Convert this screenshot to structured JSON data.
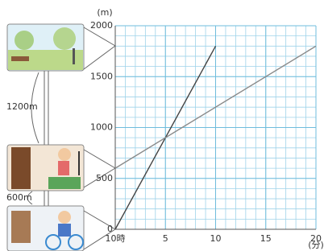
{
  "chart_data": {
    "type": "line",
    "y_unit": "(m)",
    "x_unit": "(分)",
    "xlim": [
      0,
      20
    ],
    "ylim": [
      0,
      2000
    ],
    "xticks": [
      {
        "value": 0,
        "label": "10時"
      },
      5,
      10,
      15,
      20
    ],
    "yticks": [
      0,
      500,
      1000,
      1500,
      2000
    ],
    "grid": true,
    "series": [
      {
        "color": "#444444",
        "x": [
          0,
          10
        ],
        "values": [
          0,
          1800
        ]
      },
      {
        "color": "#8a8a8a",
        "x": [
          0,
          20
        ],
        "values": [
          600,
          1800
        ]
      }
    ],
    "annotations": [
      "1200m",
      "600m"
    ]
  }
}
